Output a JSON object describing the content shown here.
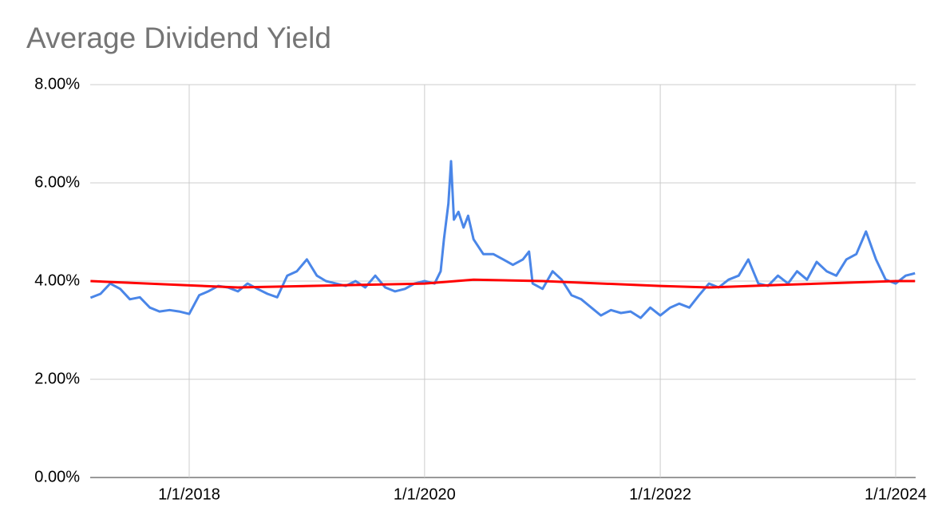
{
  "chart_data": {
    "type": "line",
    "title": "Average Dividend Yield",
    "xlim": [
      "2017-02-28",
      "2024-03-03"
    ],
    "xticks": [
      {
        "value": "2018-01-01",
        "label": "1/1/2018"
      },
      {
        "value": "2020-01-01",
        "label": "1/1/2020"
      },
      {
        "value": "2022-01-01",
        "label": "1/1/2022"
      },
      {
        "value": "2024-01-01",
        "label": "1/1/2024"
      }
    ],
    "ylim": [
      0,
      8
    ],
    "yticks": [
      {
        "value": 0,
        "label": "0.00%"
      },
      {
        "value": 2,
        "label": "2.00%"
      },
      {
        "value": 4,
        "label": "4.00%"
      },
      {
        "value": 6,
        "label": "6.00%"
      },
      {
        "value": 8,
        "label": "8.00%"
      }
    ],
    "grid": true,
    "series": [
      {
        "color": "#4a86e8",
        "x": [
          "2017-03-01",
          "2017-04-01",
          "2017-05-01",
          "2017-06-01",
          "2017-07-01",
          "2017-08-01",
          "2017-09-01",
          "2017-10-01",
          "2017-11-01",
          "2017-12-01",
          "2018-01-01",
          "2018-02-01",
          "2018-03-01",
          "2018-04-01",
          "2018-05-01",
          "2018-06-01",
          "2018-07-01",
          "2018-08-01",
          "2018-09-01",
          "2018-10-01",
          "2018-11-01",
          "2018-12-01",
          "2019-01-01",
          "2019-02-01",
          "2019-03-01",
          "2019-04-01",
          "2019-05-01",
          "2019-06-01",
          "2019-07-01",
          "2019-08-01",
          "2019-09-01",
          "2019-10-01",
          "2019-11-01",
          "2019-12-01",
          "2020-01-01",
          "2020-02-01",
          "2020-02-20",
          "2020-03-01",
          "2020-03-15",
          "2020-03-23",
          "2020-04-01",
          "2020-04-15",
          "2020-05-01",
          "2020-05-15",
          "2020-06-01",
          "2020-07-01",
          "2020-08-01",
          "2020-09-01",
          "2020-10-01",
          "2020-11-01",
          "2020-11-20",
          "2020-12-01",
          "2021-01-01",
          "2021-02-01",
          "2021-03-01",
          "2021-04-01",
          "2021-05-01",
          "2021-06-01",
          "2021-07-01",
          "2021-08-01",
          "2021-09-01",
          "2021-10-01",
          "2021-11-01",
          "2021-12-01",
          "2022-01-01",
          "2022-02-01",
          "2022-03-01",
          "2022-04-01",
          "2022-05-01",
          "2022-06-01",
          "2022-07-01",
          "2022-08-01",
          "2022-09-01",
          "2022-10-01",
          "2022-11-01",
          "2022-12-01",
          "2023-01-01",
          "2023-02-01",
          "2023-03-01",
          "2023-04-01",
          "2023-05-01",
          "2023-06-01",
          "2023-07-01",
          "2023-08-01",
          "2023-09-01",
          "2023-10-01",
          "2023-11-01",
          "2023-12-01",
          "2024-01-01",
          "2024-02-01",
          "2024-03-01"
        ],
        "values": [
          3.66,
          3.74,
          3.95,
          3.84,
          3.63,
          3.67,
          3.46,
          3.38,
          3.41,
          3.38,
          3.33,
          3.71,
          3.79,
          3.9,
          3.87,
          3.79,
          3.95,
          3.84,
          3.74,
          3.67,
          4.11,
          4.2,
          4.44,
          4.11,
          4.0,
          3.95,
          3.9,
          4.0,
          3.87,
          4.11,
          3.87,
          3.79,
          3.84,
          3.95,
          4.0,
          3.95,
          4.2,
          4.85,
          5.58,
          6.44,
          5.25,
          5.41,
          5.09,
          5.33,
          4.85,
          4.55,
          4.55,
          4.44,
          4.33,
          4.44,
          4.6,
          3.95,
          3.84,
          4.2,
          4.03,
          3.71,
          3.63,
          3.46,
          3.3,
          3.41,
          3.35,
          3.38,
          3.25,
          3.46,
          3.3,
          3.46,
          3.54,
          3.46,
          3.71,
          3.95,
          3.87,
          4.03,
          4.11,
          4.44,
          3.95,
          3.9,
          4.11,
          3.95,
          4.2,
          4.03,
          4.39,
          4.2,
          4.11,
          4.44,
          4.55,
          5.01,
          4.44,
          4.03,
          3.95,
          4.11,
          4.16
        ]
      },
      {
        "color": "#ff0000",
        "x": [
          "2017-03-01",
          "2018-06-01",
          "2019-06-01",
          "2020-01-01",
          "2020-06-01",
          "2021-01-01",
          "2022-01-01",
          "2022-06-01",
          "2023-01-01",
          "2024-01-01",
          "2024-03-01"
        ],
        "values": [
          4.0,
          3.87,
          3.92,
          3.95,
          4.03,
          4.0,
          3.9,
          3.87,
          3.92,
          4.0,
          4.0
        ]
      }
    ]
  }
}
